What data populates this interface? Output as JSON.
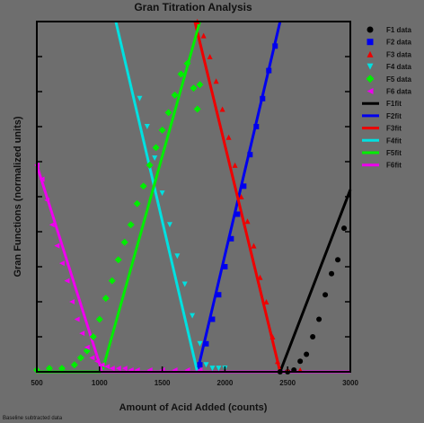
{
  "footer": "Baseline subtracted data",
  "chart_data": {
    "type": "scatter",
    "title": "Gran Titration Analysis",
    "xlabel": "Amount of Acid Added (counts)",
    "ylabel": "Gran Functions (normalized units)",
    "xlim": [
      500,
      3000
    ],
    "ylim": [
      0,
      1
    ],
    "x_ticks": [
      500,
      1000,
      1500,
      2000,
      2500,
      3000
    ],
    "x_tick_labels": [
      "500",
      "1000",
      "1500",
      "2000",
      "2500",
      "3000"
    ],
    "y_ticks": [
      0,
      0.1,
      0.2,
      0.3,
      0.4,
      0.5,
      0.6,
      0.7,
      0.8,
      0.9,
      1.0
    ],
    "grid": false,
    "legend_position": "outside-right",
    "series": [
      {
        "name": "F1 data",
        "kind": "data",
        "color": "#000000",
        "marker": "circle",
        "x": [
          2440,
          2500,
          2550,
          2600,
          2650,
          2700,
          2750,
          2800,
          2850,
          2900,
          2950
        ],
        "y": [
          0,
          0,
          0.005,
          0.03,
          0.05,
          0.1,
          0.15,
          0.22,
          0.28,
          0.32,
          0.41
        ]
      },
      {
        "name": "F2 data",
        "kind": "data",
        "color": "#0000ee",
        "marker": "square",
        "x": [
          1800,
          1850,
          1900,
          1950,
          2000,
          2050,
          2100,
          2150,
          2200,
          2250,
          2300,
          2350,
          2400
        ],
        "y": [
          0.02,
          0.08,
          0.15,
          0.22,
          0.3,
          0.38,
          0.45,
          0.53,
          0.62,
          0.7,
          0.78,
          0.86,
          0.93
        ]
      },
      {
        "name": "F3 data",
        "kind": "data",
        "color": "#ee0000",
        "marker": "triangle-up",
        "x": [
          1780,
          1830,
          1880,
          1930,
          1980,
          2030,
          2080,
          2130,
          2180,
          2230,
          2280,
          2330,
          2380,
          2420,
          2500,
          2600
        ],
        "y": [
          1.0,
          0.96,
          0.9,
          0.83,
          0.75,
          0.67,
          0.59,
          0.5,
          0.43,
          0.36,
          0.27,
          0.2,
          0.1,
          0.03,
          0.005,
          0.005
        ]
      },
      {
        "name": "F4 data",
        "kind": "data",
        "color": "#00e0e0",
        "marker": "triangle-down",
        "x": [
          1320,
          1380,
          1440,
          1500,
          1560,
          1620,
          1680,
          1740,
          1800,
          1850,
          1900,
          1950,
          2000
        ],
        "y": [
          0.78,
          0.7,
          0.61,
          0.51,
          0.42,
          0.33,
          0.25,
          0.16,
          0.08,
          0.02,
          0.01,
          0.01,
          0.01
        ]
      },
      {
        "name": "F5 data",
        "kind": "data",
        "color": "#00ee00",
        "marker": "diamond",
        "x": [
          500,
          600,
          700,
          800,
          850,
          900,
          950,
          1000,
          1050,
          1100,
          1150,
          1200,
          1250,
          1300,
          1350,
          1400,
          1450,
          1500,
          1550,
          1600,
          1650,
          1700,
          1750,
          1780,
          1800
        ],
        "y": [
          0.005,
          0.01,
          0.01,
          0.02,
          0.04,
          0.06,
          0.1,
          0.15,
          0.21,
          0.26,
          0.32,
          0.37,
          0.42,
          0.48,
          0.53,
          0.59,
          0.64,
          0.69,
          0.74,
          0.79,
          0.85,
          0.88,
          0.81,
          0.75,
          0.82
        ]
      },
      {
        "name": "F6 data",
        "kind": "data",
        "color": "#ee00ee",
        "marker": "triangle-left",
        "x": [
          500,
          540,
          580,
          620,
          660,
          700,
          740,
          780,
          820,
          860,
          900,
          940,
          980,
          1020,
          1060,
          1100,
          1150,
          1200,
          1250,
          1300,
          1400,
          1500,
          1600,
          1700,
          1800
        ],
        "y": [
          0.59,
          0.55,
          0.49,
          0.42,
          0.36,
          0.31,
          0.26,
          0.2,
          0.15,
          0.11,
          0.07,
          0.04,
          0.03,
          0.02,
          0.015,
          0.01,
          0.01,
          0.01,
          0.005,
          0.005,
          0.005,
          0.005,
          0.005,
          0.005,
          0.005
        ]
      },
      {
        "name": "F1fit",
        "kind": "fit",
        "color": "#000000",
        "x": [
          500,
          2440,
          3000
        ],
        "y": [
          0,
          0,
          0.52
        ]
      },
      {
        "name": "F2fit",
        "kind": "fit",
        "color": "#0000ee",
        "x": [
          500,
          1780,
          2440
        ],
        "y": [
          0,
          0,
          1.0
        ]
      },
      {
        "name": "F3fit",
        "kind": "fit",
        "color": "#ee0000",
        "x": [
          1760,
          2440,
          3000
        ],
        "y": [
          1.0,
          0,
          0
        ]
      },
      {
        "name": "F4fit",
        "kind": "fit",
        "color": "#00e0e0",
        "x": [
          1130,
          1780,
          3000
        ],
        "y": [
          1.0,
          0,
          0
        ]
      },
      {
        "name": "F5fit",
        "kind": "fit",
        "color": "#00ee00",
        "x": [
          500,
          1020,
          1800
        ],
        "y": [
          0,
          0,
          1.0
        ]
      },
      {
        "name": "F6fit",
        "kind": "fit",
        "color": "#ee00ee",
        "x": [
          500,
          1020,
          3000
        ],
        "y": [
          0.59,
          0,
          0
        ]
      }
    ]
  }
}
